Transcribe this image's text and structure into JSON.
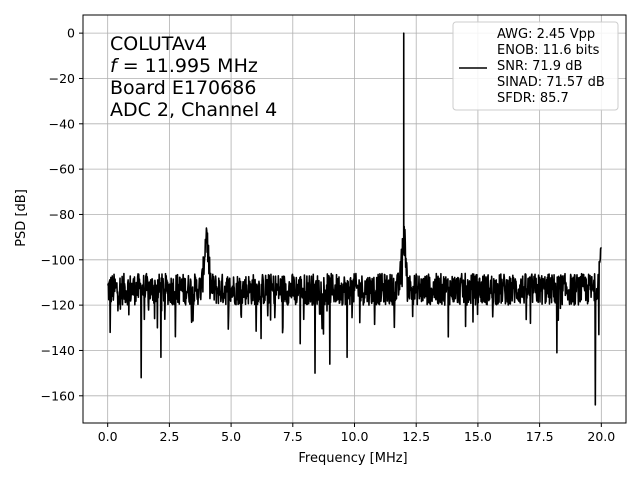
{
  "chart_data": {
    "type": "line",
    "title": "",
    "xlabel": "Frequency [MHz]",
    "ylabel": "PSD [dB]",
    "xlim": [
      -1.0,
      21.0
    ],
    "ylim": [
      -172,
      8
    ],
    "xticks": [
      0.0,
      2.5,
      5.0,
      7.5,
      10.0,
      12.5,
      15.0,
      17.5,
      20.0
    ],
    "xtick_labels": [
      "0.0",
      "2.5",
      "5.0",
      "7.5",
      "10.0",
      "12.5",
      "15.0",
      "17.5",
      "20.0"
    ],
    "yticks": [
      0,
      -20,
      -40,
      -60,
      -80,
      -100,
      -120,
      -140,
      -160
    ],
    "ytick_labels": [
      "0",
      "−20",
      "−40",
      "−60",
      "−80",
      "−100",
      "−120",
      "−140",
      "−160"
    ],
    "grid": true,
    "series_color": "#000000",
    "annotation": {
      "lines": [
        "COLUTAv4",
        "= 11.995 MHz",
        "Board E170686",
        "ADC 2, Channel 4"
      ],
      "f_symbol": "f"
    },
    "legend": {
      "placement": "top-right",
      "entries": [
        "AWG: 2.45 Vpp",
        "ENOB: 11.6 bits",
        "SNR: 71.9 dB",
        "SINAD: 71.57 dB",
        "SFDR: 85.7"
      ]
    },
    "series": [
      {
        "noise_floor_db": -113,
        "noise_spread_db": 7,
        "signal_peak": {
          "x": 11.995,
          "y": 0
        },
        "spurs": [
          {
            "x": 4.0,
            "y": -86
          },
          {
            "x": 12.0,
            "y": -86
          },
          {
            "x": 20.0,
            "y": -95
          }
        ],
        "dips": [
          {
            "x": 0.1,
            "y": -132
          },
          {
            "x": 1.35,
            "y": -152
          },
          {
            "x": 2.15,
            "y": -143
          },
          {
            "x": 7.8,
            "y": -137
          },
          {
            "x": 8.4,
            "y": -150
          },
          {
            "x": 9.0,
            "y": -146
          },
          {
            "x": 9.7,
            "y": -143
          },
          {
            "x": 13.8,
            "y": -134
          },
          {
            "x": 18.2,
            "y": -141
          },
          {
            "x": 19.75,
            "y": -164
          },
          {
            "x": 19.9,
            "y": -133
          }
        ]
      }
    ]
  }
}
